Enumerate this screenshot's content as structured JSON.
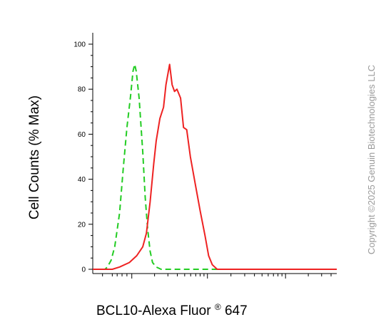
{
  "chart_data": {
    "type": "line",
    "xlabel": "BCL10-Alexa Fluor",
    "xlabel_sup": "®",
    "xlabel_suffix": " 647",
    "ylabel": "Cell Counts (% Max)",
    "xscale": "log (biexponential display)",
    "ylim": [
      0,
      100
    ],
    "yticks": [
      "0",
      "20",
      "40",
      "60",
      "80",
      "100"
    ],
    "grid": false,
    "series": [
      {
        "style": "dashed",
        "color": "#22cc22",
        "points": [
          [
            0.0,
            0
          ],
          [
            0.05,
            0
          ],
          [
            0.06,
            1
          ],
          [
            0.075,
            4
          ],
          [
            0.09,
            10
          ],
          [
            0.11,
            25
          ],
          [
            0.125,
            45
          ],
          [
            0.14,
            63
          ],
          [
            0.155,
            77
          ],
          [
            0.165,
            88
          ],
          [
            0.172,
            91
          ],
          [
            0.178,
            88
          ],
          [
            0.19,
            76
          ],
          [
            0.205,
            52
          ],
          [
            0.215,
            32
          ],
          [
            0.225,
            18
          ],
          [
            0.235,
            8
          ],
          [
            0.245,
            3
          ],
          [
            0.26,
            1
          ],
          [
            0.28,
            0
          ],
          [
            1.0,
            0
          ]
        ]
      },
      {
        "style": "solid",
        "color": "#ee2222",
        "points": [
          [
            0.0,
            0
          ],
          [
            0.08,
            0
          ],
          [
            0.11,
            1
          ],
          [
            0.15,
            3
          ],
          [
            0.18,
            6
          ],
          [
            0.205,
            10
          ],
          [
            0.22,
            16
          ],
          [
            0.235,
            30
          ],
          [
            0.25,
            47
          ],
          [
            0.26,
            57
          ],
          [
            0.275,
            67
          ],
          [
            0.29,
            72
          ],
          [
            0.3,
            82
          ],
          [
            0.315,
            91
          ],
          [
            0.325,
            82
          ],
          [
            0.335,
            79
          ],
          [
            0.345,
            80
          ],
          [
            0.36,
            76
          ],
          [
            0.372,
            63
          ],
          [
            0.385,
            62
          ],
          [
            0.4,
            50
          ],
          [
            0.42,
            38
          ],
          [
            0.44,
            26
          ],
          [
            0.46,
            15
          ],
          [
            0.475,
            6
          ],
          [
            0.49,
            2
          ],
          [
            0.51,
            0
          ],
          [
            1.0,
            0
          ]
        ]
      }
    ]
  },
  "watermark": "Copyright ©2025 Genuin Biotechnologies LLC"
}
